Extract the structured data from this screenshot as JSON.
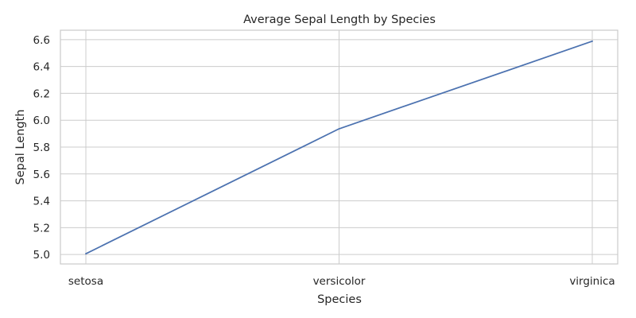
{
  "chart_data": {
    "type": "line",
    "title": "Average Sepal Length by Species",
    "xlabel": "Species",
    "ylabel": "Sepal Length",
    "categories": [
      "setosa",
      "versicolor",
      "virginica"
    ],
    "series": [
      {
        "values": [
          5.006,
          5.936,
          6.588
        ]
      }
    ],
    "yticks": [
      "5.0",
      "5.2",
      "5.4",
      "5.6",
      "5.8",
      "6.0",
      "6.2",
      "6.4",
      "6.6"
    ],
    "ylim": [
      4.93,
      6.67
    ],
    "grid": true,
    "legend": "none",
    "colors": {
      "line": "#4c72b0",
      "grid": "#cccccc",
      "text": "#262626"
    }
  }
}
